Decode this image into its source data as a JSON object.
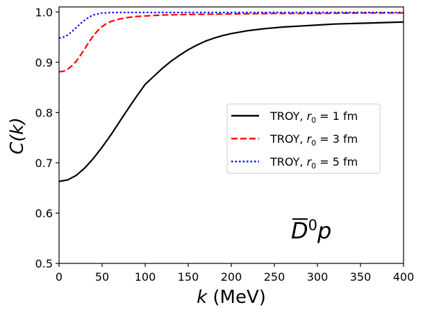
{
  "chart_data": {
    "type": "line",
    "xlabel": "k (MeV)",
    "xlabel_var": "k",
    "xlabel_unit": " (MeV)",
    "ylabel": "C(k)",
    "xlim": [
      0,
      400
    ],
    "ylim": [
      0.5,
      1.01
    ],
    "xticks": [
      0,
      50,
      100,
      150,
      200,
      250,
      300,
      350,
      400
    ],
    "yticks": [
      0.5,
      0.6,
      0.7,
      0.8,
      0.9,
      1.0
    ],
    "ytick_labels": [
      "0.5",
      "0.6",
      "0.7",
      "0.8",
      "0.9",
      "1.0"
    ],
    "grid": false,
    "legend_position": "center-right",
    "annotation": {
      "text": "D̅⁰p",
      "base": "D",
      "superscript": "0",
      "suffix": "p"
    },
    "series": [
      {
        "name": "TROY, r0 = 1 fm",
        "legend_prefix": "TROY, ",
        "legend_var": "r",
        "legend_sub": "0",
        "legend_suffix": " = 1 fm",
        "color": "#000000",
        "style": "solid",
        "x": [
          0,
          10,
          20,
          30,
          40,
          50,
          60,
          70,
          80,
          90,
          100,
          110,
          120,
          130,
          140,
          150,
          160,
          170,
          180,
          190,
          200,
          220,
          240,
          260,
          280,
          300,
          320,
          340,
          360,
          380,
          400
        ],
        "y": [
          0.663,
          0.666,
          0.675,
          0.69,
          0.709,
          0.731,
          0.755,
          0.781,
          0.807,
          0.832,
          0.856,
          0.872,
          0.888,
          0.902,
          0.914,
          0.925,
          0.934,
          0.942,
          0.948,
          0.953,
          0.957,
          0.963,
          0.967,
          0.97,
          0.972,
          0.974,
          0.976,
          0.977,
          0.978,
          0.979,
          0.98
        ]
      },
      {
        "name": "TROY, r0 = 3 fm",
        "legend_prefix": "TROY, ",
        "legend_var": "r",
        "legend_sub": "0",
        "legend_suffix": " = 3 fm",
        "color": "#ff0000",
        "style": "dashed",
        "x": [
          0,
          5,
          10,
          15,
          20,
          25,
          30,
          35,
          40,
          45,
          50,
          55,
          60,
          70,
          80,
          90,
          100,
          120,
          150,
          200,
          250,
          300,
          350,
          400
        ],
        "y": [
          0.881,
          0.882,
          0.886,
          0.893,
          0.902,
          0.914,
          0.927,
          0.941,
          0.953,
          0.963,
          0.971,
          0.977,
          0.981,
          0.986,
          0.989,
          0.991,
          0.992,
          0.994,
          0.995,
          0.996,
          0.997,
          0.997,
          0.998,
          0.998
        ]
      },
      {
        "name": "TROY, r0 = 5 fm",
        "legend_prefix": "TROY, ",
        "legend_var": "r",
        "legend_sub": "0",
        "legend_suffix": " = 5 fm",
        "color": "#0000ff",
        "style": "dotted",
        "x": [
          0,
          5,
          10,
          15,
          20,
          25,
          30,
          35,
          40,
          45,
          50,
          55,
          60,
          70,
          80,
          100,
          150,
          200,
          300,
          400
        ],
        "y": [
          0.948,
          0.95,
          0.954,
          0.961,
          0.969,
          0.977,
          0.984,
          0.99,
          0.994,
          0.996,
          0.998,
          0.998,
          0.999,
          0.999,
          0.999,
          0.999,
          0.999,
          0.999,
          0.999,
          0.999
        ]
      }
    ]
  }
}
